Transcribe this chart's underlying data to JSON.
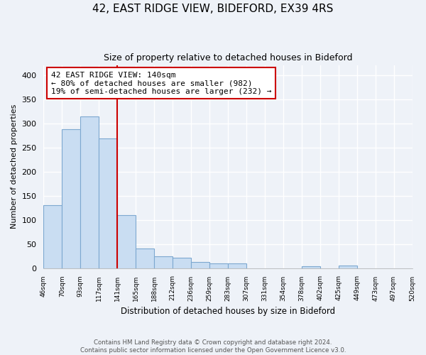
{
  "title": "42, EAST RIDGE VIEW, BIDEFORD, EX39 4RS",
  "subtitle": "Size of property relative to detached houses in Bideford",
  "xlabel": "Distribution of detached houses by size in Bideford",
  "ylabel": "Number of detached properties",
  "bin_labels": [
    "46sqm",
    "70sqm",
    "93sqm",
    "117sqm",
    "141sqm",
    "165sqm",
    "188sqm",
    "212sqm",
    "236sqm",
    "259sqm",
    "283sqm",
    "307sqm",
    "331sqm",
    "354sqm",
    "378sqm",
    "402sqm",
    "425sqm",
    "449sqm",
    "473sqm",
    "497sqm",
    "520sqm"
  ],
  "bar_values": [
    130,
    287,
    314,
    269,
    109,
    41,
    25,
    22,
    13,
    9,
    9,
    0,
    0,
    0,
    4,
    0,
    5,
    0,
    0,
    0
  ],
  "bar_color": "#c9ddf2",
  "bar_edge_color": "#7da8d0",
  "vline_x_index": 4,
  "vline_color": "#cc0000",
  "ylim": [
    0,
    420
  ],
  "yticks": [
    0,
    50,
    100,
    150,
    200,
    250,
    300,
    350,
    400
  ],
  "annotation_line1": "42 EAST RIDGE VIEW: 140sqm",
  "annotation_line2": "← 80% of detached houses are smaller (982)",
  "annotation_line3": "19% of semi-detached houses are larger (232) →",
  "annotation_box_color": "#ffffff",
  "annotation_box_edge": "#cc0000",
  "footer_line1": "Contains HM Land Registry data © Crown copyright and database right 2024.",
  "footer_line2": "Contains public sector information licensed under the Open Government Licence v3.0.",
  "background_color": "#eef2f8",
  "grid_color": "#ffffff"
}
